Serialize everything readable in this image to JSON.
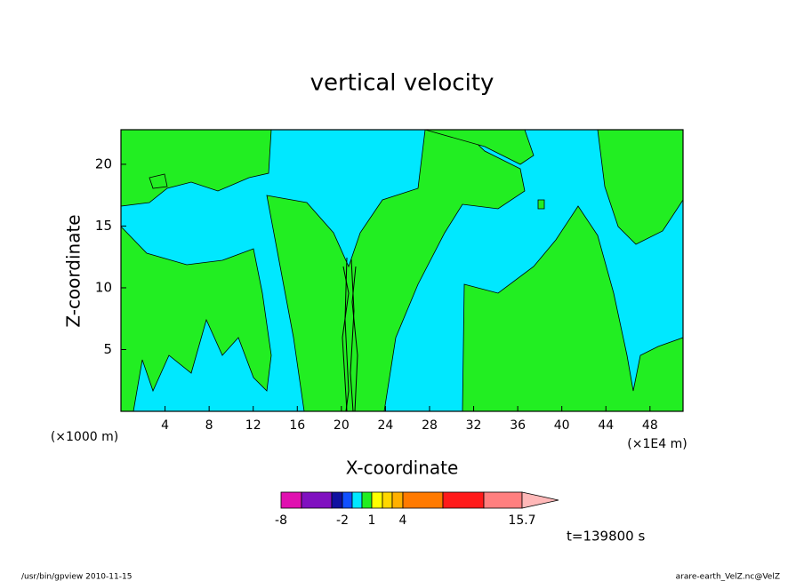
{
  "chart_data": {
    "type": "contour",
    "title": "vertical velocity",
    "x_label": "X-coordinate",
    "y_label": "Z-coordinate",
    "x_unit_left": "(×1000 m)",
    "x_unit_right": "(×1E4 m)",
    "xlim": [
      0,
      51
    ],
    "xticks": [
      4,
      8,
      12,
      16,
      20,
      24,
      28,
      32,
      36,
      40,
      44,
      48
    ],
    "ylim": [
      0,
      22.8
    ],
    "yticks": [
      5,
      10,
      15,
      20
    ],
    "colorbar": {
      "levels": [
        -8,
        -5,
        -3,
        -2,
        -1,
        0,
        1,
        2,
        3,
        4,
        8,
        12,
        15.7
      ],
      "colors": [
        "#e010b0",
        "#8010c0",
        "#1010a0",
        "#1050ff",
        "#00e8ff",
        "#22ee22",
        "#ffff00",
        "#ffd700",
        "#ffb000",
        "#ff7a00",
        "#ff1a1a",
        "#ff7f7f",
        "#ffb8b8"
      ],
      "ticks": [
        -8,
        -2,
        1,
        4,
        15.7
      ]
    },
    "annotation": "t=139800 s"
  },
  "footer": {
    "left": "/usr/bin/gpview   2010-11-15",
    "right": "arare-earth_VelZ.nc@VelZ"
  }
}
